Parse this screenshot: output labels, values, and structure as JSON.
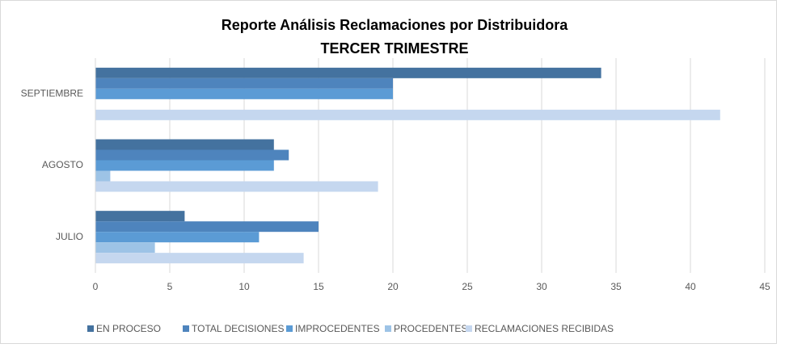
{
  "chart_data": {
    "type": "hbar",
    "title": "Reporte Análisis Reclamaciones por Distribuidora",
    "subtitle": "TERCER TRIMESTRE",
    "categories": [
      "JULIO",
      "AGOSTO",
      "SEPTIEMBRE"
    ],
    "series": [
      {
        "name": "EN PROCESO",
        "color": "#44729f",
        "values": [
          6,
          12,
          34
        ]
      },
      {
        "name": "TOTAL DECISIONES",
        "color": "#4e84bd",
        "values": [
          15,
          13,
          20
        ]
      },
      {
        "name": "IMPROCEDENTES",
        "color": "#5b9bd5",
        "values": [
          11,
          12,
          20
        ]
      },
      {
        "name": "PROCEDENTES",
        "color": "#9dc3e6",
        "values": [
          4,
          1,
          0
        ]
      },
      {
        "name": "RECLAMACIONES RECIBIDAS",
        "color": "#c5d7ef",
        "values": [
          14,
          19,
          42
        ]
      }
    ],
    "xlim": [
      0,
      45
    ],
    "xticks": [
      0,
      5,
      10,
      15,
      20,
      25,
      30,
      35,
      40,
      45
    ],
    "grid": true,
    "legend": "bottom"
  }
}
